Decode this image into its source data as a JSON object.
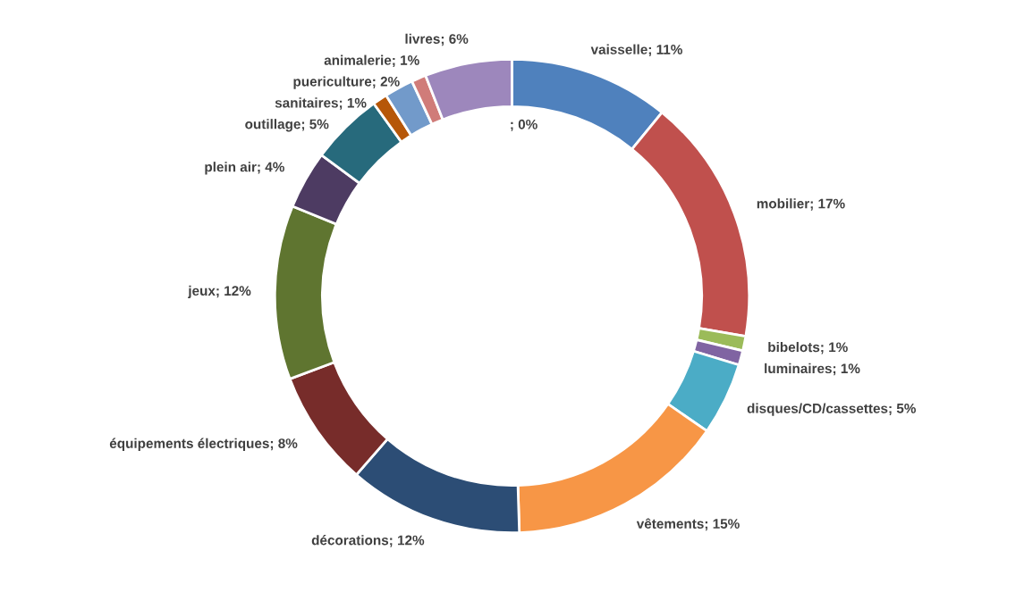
{
  "chart_data": {
    "type": "donut",
    "categories": [
      "vaisselle",
      "mobilier",
      "bibelots",
      "luminaires",
      "disques/CD/cassettes",
      "vêtements",
      "décorations",
      "équipements électriques",
      "jeux",
      "plein air",
      "outillage",
      "sanitaires",
      "puericulture",
      "animalerie",
      "livres",
      null
    ],
    "values": [
      11,
      17,
      1,
      1,
      5,
      15,
      12,
      8,
      12,
      4,
      5,
      1,
      2,
      1,
      6,
      0
    ],
    "value_labels": [
      "11%",
      "17%",
      "1%",
      "1%",
      "5%",
      "15%",
      "12%",
      "8%",
      "12%",
      "4%",
      "5%",
      "1%",
      "2%",
      "1%",
      "6%",
      "; 0%"
    ],
    "colors": [
      "#4f81bd",
      "#c0504d",
      "#9bbb59",
      "#8064a2",
      "#4bacc6",
      "#f79646",
      "#2c4d75",
      "#772c2a",
      "#5f7530",
      "#4d3b62",
      "#276a7c",
      "#b65708",
      "#729aca",
      "#d07c79",
      "#9d87bc",
      "#7f7f7f"
    ],
    "legend": false
  }
}
